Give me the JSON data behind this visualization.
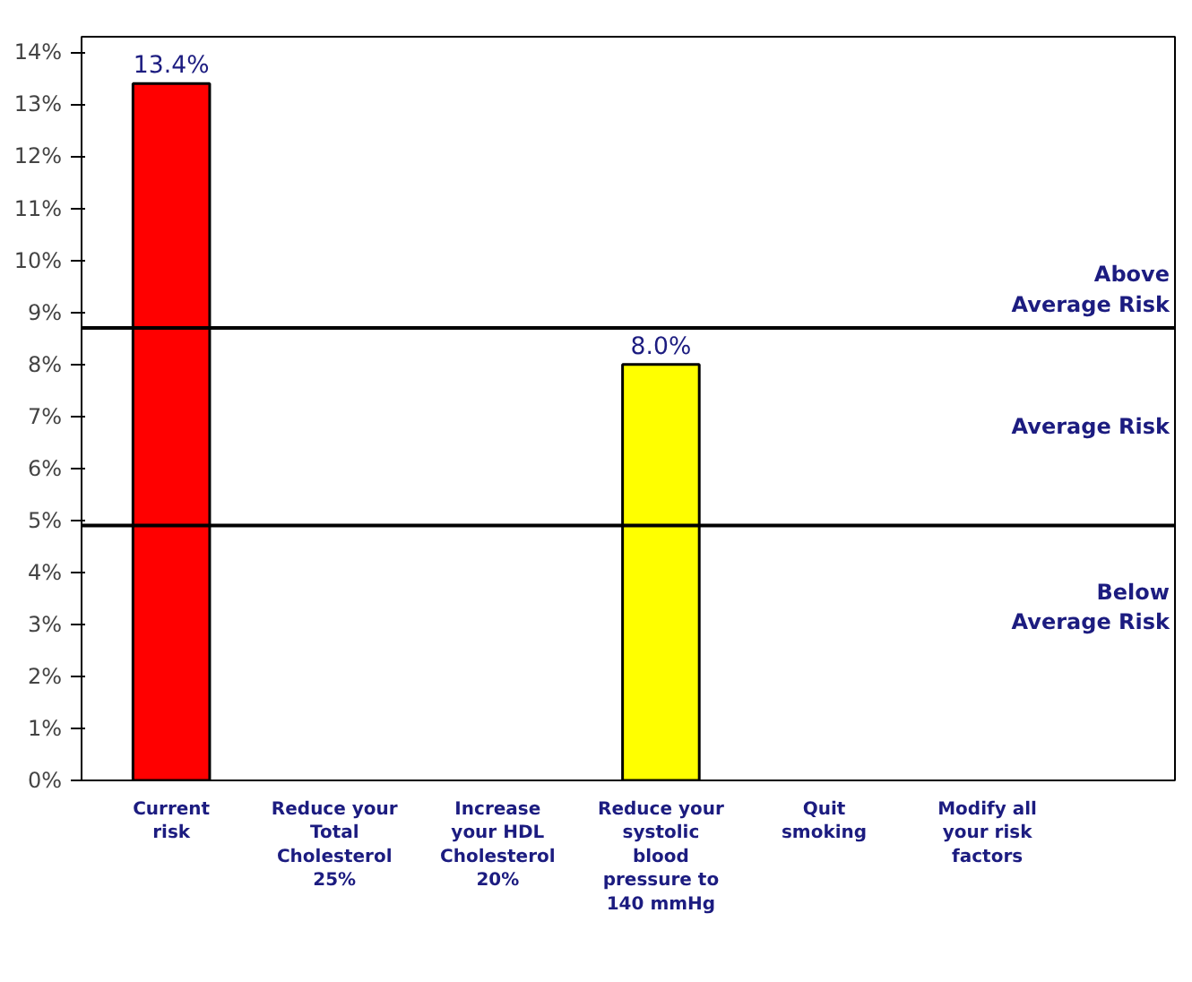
{
  "chart_data": {
    "type": "bar",
    "categories": [
      "Current risk",
      "Reduce your Total Cholesterol 25%",
      "Increase your HDL Cholesterol 20%",
      "Reduce your systolic blood pressure to 140 mmHg",
      "Quit smoking",
      "Modify all your risk factors"
    ],
    "values": [
      13.4,
      null,
      null,
      8.0,
      null,
      null
    ],
    "colors": [
      "#ff0000",
      null,
      null,
      "#ffff00",
      null,
      null
    ],
    "value_labels": [
      "13.4%",
      null,
      null,
      "8.0%",
      null,
      null
    ],
    "ylim": [
      0,
      14.3
    ],
    "yticks": [
      {
        "value": 0,
        "label": "0%"
      },
      {
        "value": 1,
        "label": "1%"
      },
      {
        "value": 2,
        "label": "2%"
      },
      {
        "value": 3,
        "label": "3%"
      },
      {
        "value": 4,
        "label": "4%"
      },
      {
        "value": 5,
        "label": "5%"
      },
      {
        "value": 6,
        "label": "6%"
      },
      {
        "value": 7,
        "label": "7%"
      },
      {
        "value": 8,
        "label": "8%"
      },
      {
        "value": 9,
        "label": "9%"
      },
      {
        "value": 10,
        "label": "10%"
      },
      {
        "value": 11,
        "label": "11%"
      },
      {
        "value": 12,
        "label": "12%"
      },
      {
        "value": 13,
        "label": "13%"
      },
      {
        "value": 14,
        "label": "14%"
      }
    ],
    "ref_lines": [
      {
        "axis": "y",
        "value": 8.7,
        "color": "#000000"
      },
      {
        "axis": "y",
        "value": 4.9,
        "color": "#000000"
      }
    ],
    "annotations": [
      "Above Average Risk",
      "Average Risk",
      "Below Average Risk"
    ],
    "grid": false
  }
}
